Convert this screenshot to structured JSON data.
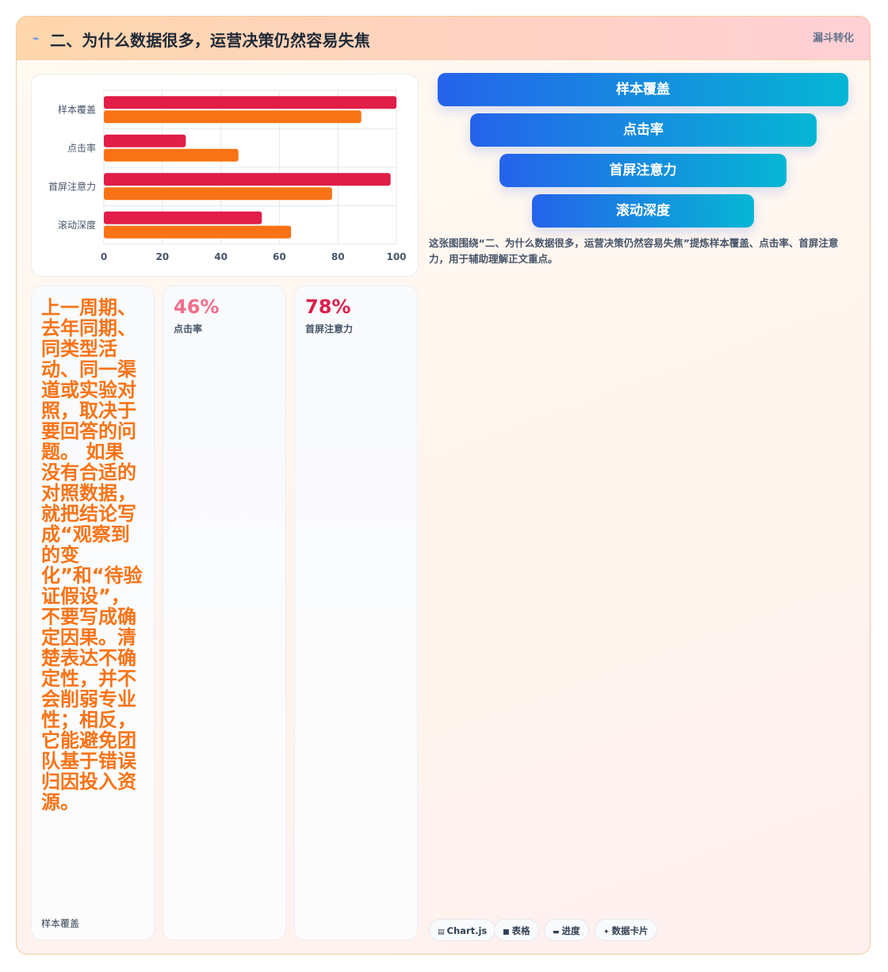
{
  "header": {
    "icon": "lightning-icon",
    "title": "二、为什么数据很多，运营决策仍然容易失焦",
    "badge": "漏斗转化"
  },
  "chart_data": {
    "type": "bar",
    "orientation": "horizontal",
    "categories": [
      "样本覆盖",
      "点击率",
      "首屏注意力",
      "滚动深度"
    ],
    "series": [
      {
        "values": [
          100,
          28,
          98,
          54
        ],
        "color": "#e11d48"
      },
      {
        "values": [
          88,
          46,
          78,
          64
        ],
        "color": "#f97316"
      }
    ],
    "xlim": [
      0,
      100
    ],
    "xticks": [
      0,
      20,
      40,
      60,
      80,
      100
    ],
    "grid": true
  },
  "funnel": {
    "steps": [
      "样本覆盖",
      "点击率",
      "首屏注意力",
      "滚动深度"
    ],
    "caption": "这张图围绕“二、为什么数据很多，运营决策仍然容易失焦”提炼样本覆盖、点击率、首屏注意力，用于辅助理解正文重点。"
  },
  "cards": [
    {
      "text": "上一周期、去年同期、同类型活动、同一渠道或实验对照，取决于要回答的问题。 如果没有合适的对照数据，就把结论写成“观察到的变化”和“待验证假设”，不要写成确定因果。清楚表达不确定性，并不会削弱专业性；相反，它能避免团队基于错误归因投入资源。",
      "label": "样本覆盖",
      "color": "#f97316"
    },
    {
      "value": "46%",
      "label": "点击率",
      "color": "#f26d8a"
    },
    {
      "value": "78%",
      "label": "首屏注意力",
      "color": "#dc1e4a"
    }
  ],
  "chips": [
    {
      "icon": "chart-icon",
      "glyph": "▤",
      "label": "Chart.js"
    },
    {
      "icon": "table-icon",
      "glyph": "■",
      "label": "表格"
    },
    {
      "icon": "progress-icon",
      "glyph": "▬",
      "label": "进度"
    },
    {
      "icon": "sparkle-icon",
      "glyph": "✦",
      "label": "数据卡片"
    }
  ]
}
